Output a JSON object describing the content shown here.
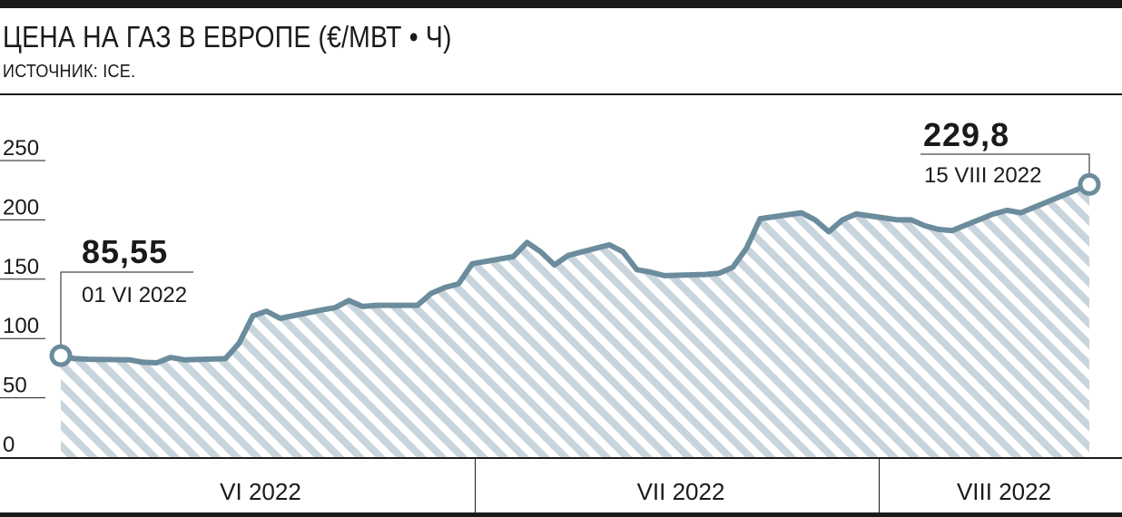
{
  "header": {
    "title": "ЦЕНА НА ГАЗ В ЕВРОПЕ (€/МВТ • Ч)",
    "source": "ИСТОЧНИК: ICE."
  },
  "colors": {
    "line": "#6b8c9c",
    "hatch": "#c9d5dd",
    "text": "#1a1a1a"
  },
  "chart_data": {
    "type": "area",
    "title": "ЦЕНА НА ГАЗ В ЕВРОПЕ (€/МВТ • Ч)",
    "ylim": [
      0,
      250
    ],
    "yticks": [
      "250",
      "200",
      "150",
      "100",
      "50",
      "0"
    ],
    "ytick_values": [
      250,
      200,
      150,
      100,
      50,
      0
    ],
    "x_range": [
      "2022-06-01",
      "2022-08-15"
    ],
    "month_labels": [
      "VI 2022",
      "VII 2022",
      "VIII 2022"
    ],
    "series": [
      {
        "values": [
          [
            "2022-06-01",
            85.55
          ],
          [
            "2022-06-02",
            83
          ],
          [
            "2022-06-03",
            82.5
          ],
          [
            "2022-06-06",
            82
          ],
          [
            "2022-06-07",
            80
          ],
          [
            "2022-06-08",
            79.5
          ],
          [
            "2022-06-09",
            84
          ],
          [
            "2022-06-10",
            82
          ],
          [
            "2022-06-13",
            83
          ],
          [
            "2022-06-14",
            96
          ],
          [
            "2022-06-15",
            119
          ],
          [
            "2022-06-16",
            123
          ],
          [
            "2022-06-17",
            117
          ],
          [
            "2022-06-20",
            124
          ],
          [
            "2022-06-21",
            126
          ],
          [
            "2022-06-22",
            132
          ],
          [
            "2022-06-23",
            127
          ],
          [
            "2022-06-24",
            128
          ],
          [
            "2022-06-27",
            128
          ],
          [
            "2022-06-28",
            138
          ],
          [
            "2022-06-29",
            143
          ],
          [
            "2022-06-30",
            146
          ],
          [
            "2022-07-01",
            163
          ],
          [
            "2022-07-04",
            169
          ],
          [
            "2022-07-05",
            181
          ],
          [
            "2022-07-06",
            173
          ],
          [
            "2022-07-07",
            162
          ],
          [
            "2022-07-08",
            170
          ],
          [
            "2022-07-11",
            179
          ],
          [
            "2022-07-12",
            173
          ],
          [
            "2022-07-13",
            158
          ],
          [
            "2022-07-14",
            156
          ],
          [
            "2022-07-15",
            153
          ],
          [
            "2022-07-18",
            154
          ],
          [
            "2022-07-19",
            155
          ],
          [
            "2022-07-20",
            160
          ],
          [
            "2022-07-21",
            176
          ],
          [
            "2022-07-22",
            201
          ],
          [
            "2022-07-25",
            206
          ],
          [
            "2022-07-26",
            200
          ],
          [
            "2022-07-27",
            190
          ],
          [
            "2022-07-28",
            200
          ],
          [
            "2022-07-29",
            205
          ],
          [
            "2022-08-01",
            200
          ],
          [
            "2022-08-02",
            200
          ],
          [
            "2022-08-03",
            195
          ],
          [
            "2022-08-04",
            192
          ],
          [
            "2022-08-05",
            191
          ],
          [
            "2022-08-08",
            205
          ],
          [
            "2022-08-09",
            208
          ],
          [
            "2022-08-10",
            206
          ],
          [
            "2022-08-15",
            229.8
          ]
        ]
      }
    ],
    "annotations": [
      {
        "date": "2022-06-01",
        "value": "85,55",
        "label": "01 VI 2022"
      },
      {
        "date": "2022-08-15",
        "value": "229,8",
        "label": "15 VIII 2022"
      }
    ]
  }
}
